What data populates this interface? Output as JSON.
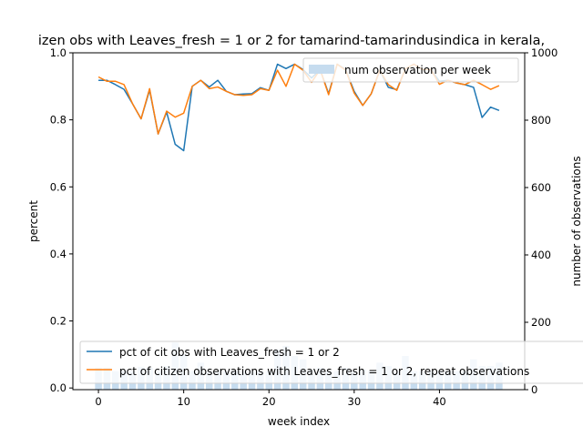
{
  "chart_data": {
    "type": "line",
    "title": "izen obs with Leaves_fresh = 1 or 2 for tamarind-tamarindusindica in kerala,",
    "xlabel": "week index",
    "ylabel": "percent",
    "y2label": "number of observations",
    "xlim": [
      -3,
      50
    ],
    "ylim": [
      -0.005,
      1.0
    ],
    "y2lim": [
      0,
      1000
    ],
    "xticks": [
      0,
      10,
      20,
      30,
      40
    ],
    "yticks": [
      0.0,
      0.2,
      0.4,
      0.6,
      0.8,
      1.0
    ],
    "y2ticks": [
      0,
      200,
      400,
      600,
      800,
      1000
    ],
    "x": [
      0,
      1,
      2,
      3,
      4,
      5,
      6,
      7,
      8,
      9,
      10,
      11,
      12,
      13,
      14,
      15,
      16,
      17,
      18,
      19,
      20,
      21,
      22,
      23,
      24,
      25,
      26,
      27,
      28,
      29,
      30,
      31,
      32,
      33,
      34,
      35,
      36,
      37,
      38,
      39,
      40,
      41,
      42,
      43,
      44,
      45,
      46,
      47
    ],
    "series": [
      {
        "name": "pct of cit obs with Leaves_fresh = 1 or 2",
        "axis": "left",
        "kind": "line",
        "color": "#1f77b4",
        "values": [
          0.918,
          0.918,
          0.905,
          0.891,
          0.848,
          0.803,
          0.889,
          0.758,
          0.823,
          0.727,
          0.708,
          0.9,
          0.918,
          0.898,
          0.918,
          0.885,
          0.875,
          0.877,
          0.878,
          0.896,
          0.888,
          0.966,
          0.953,
          0.966,
          0.95,
          0.925,
          0.95,
          0.878,
          0.966,
          0.95,
          0.885,
          0.843,
          0.878,
          0.948,
          0.897,
          0.89,
          0.952,
          0.966,
          0.95,
          0.95,
          0.915,
          0.918,
          0.91,
          0.905,
          0.897,
          0.807,
          0.838,
          0.828
        ]
      },
      {
        "name": "pct of citizen observations with Leaves_fresh = 1 or 2, repeat observations",
        "axis": "left",
        "kind": "line",
        "color": "#ff7f0e",
        "values": [
          0.928,
          0.915,
          0.915,
          0.905,
          0.848,
          0.803,
          0.893,
          0.758,
          0.826,
          0.808,
          0.82,
          0.9,
          0.918,
          0.893,
          0.898,
          0.885,
          0.875,
          0.873,
          0.875,
          0.893,
          0.888,
          0.948,
          0.9,
          0.966,
          0.948,
          0.912,
          0.95,
          0.875,
          0.966,
          0.948,
          0.88,
          0.843,
          0.878,
          0.948,
          0.905,
          0.888,
          0.952,
          0.966,
          0.95,
          0.95,
          0.906,
          0.918,
          0.91,
          0.905,
          0.918,
          0.905,
          0.891,
          0.902
        ]
      },
      {
        "name": "num observation per week",
        "axis": "right",
        "kind": "bar",
        "color": "#c6dcef",
        "values": [
          65,
          65,
          55,
          55,
          55,
          68,
          65,
          55,
          70,
          140,
          105,
          55,
          80,
          55,
          55,
          55,
          55,
          55,
          55,
          55,
          55,
          120,
          130,
          100,
          90,
          60,
          65,
          55,
          55,
          65,
          55,
          60,
          55,
          80,
          70,
          55,
          100,
          55,
          55,
          55,
          55,
          55,
          55,
          55,
          90,
          70,
          70,
          80
        ]
      }
    ],
    "legend_top": "top-right",
    "legend_bottom": "lower-center",
    "grid": false
  }
}
